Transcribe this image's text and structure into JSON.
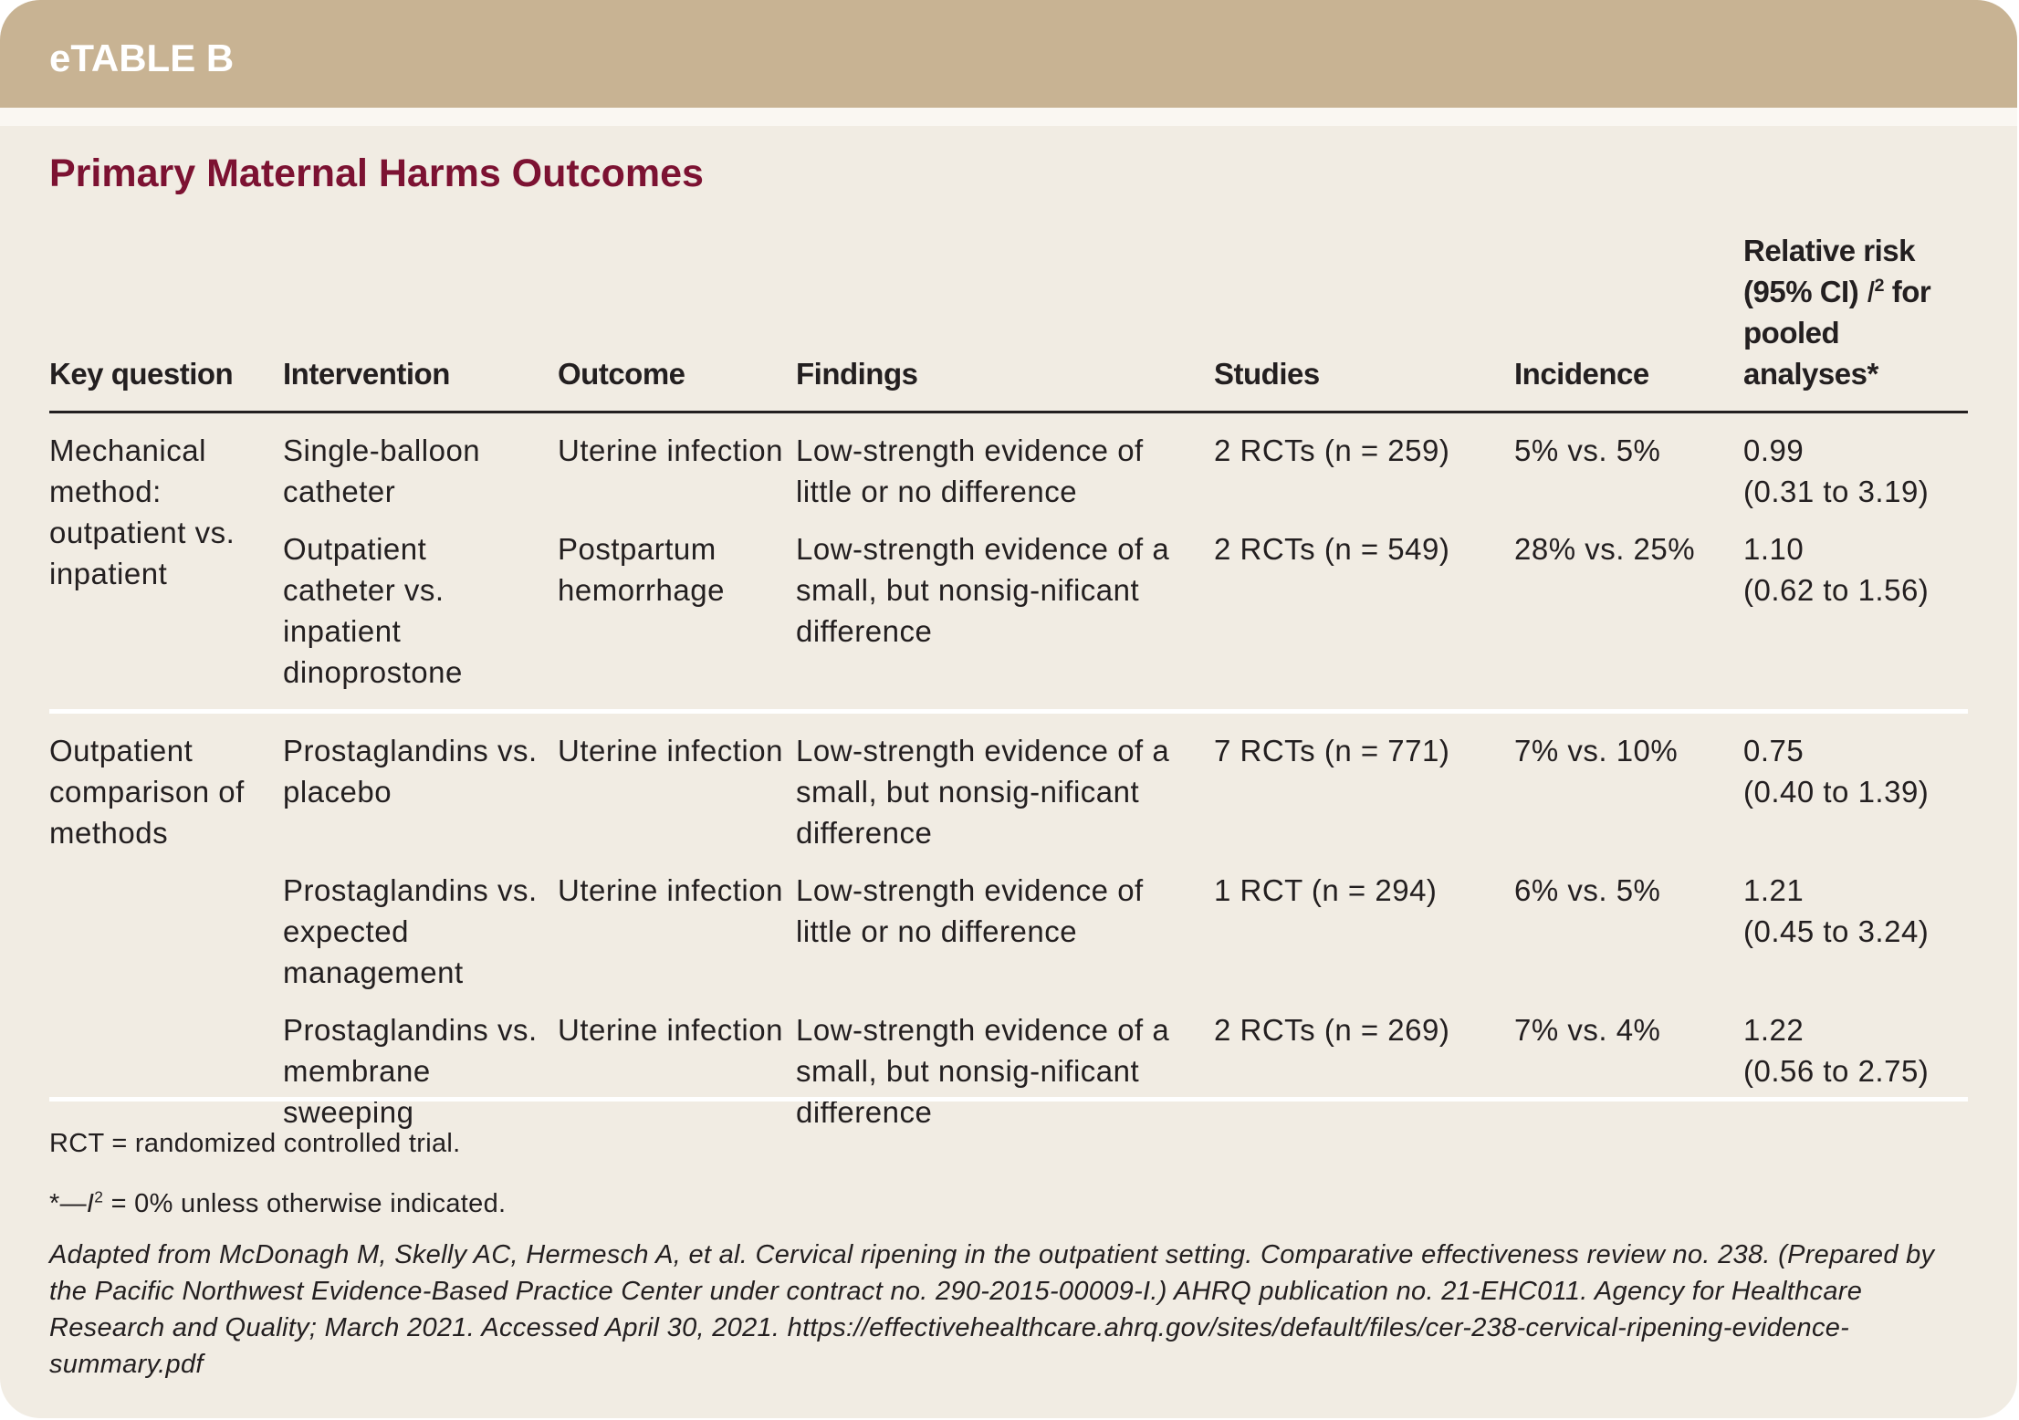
{
  "header": {
    "label": "eTABLE B"
  },
  "title": "Primary Maternal Harms Outcomes",
  "table": {
    "columns": [
      "Key question",
      "Intervention",
      "Outcome",
      "Findings",
      "Studies",
      "Incidence",
      {
        "text": "Relative risk (95% CI) ",
        "italic": "I",
        "sup": "2",
        "text_after": " for pooled analyses*"
      }
    ],
    "groups": [
      {
        "key_question": "Mechanical method: outpatient vs. inpatient",
        "rows": [
          {
            "intervention": "Single-balloon catheter",
            "outcome": "Uterine infection",
            "findings": "Low-strength evidence of little or no difference",
            "studies": "2 RCTs (n = 259)",
            "incidence": "5% vs. 5%",
            "rr": "0.99",
            "ci": "(0.31 to 3.19)"
          },
          {
            "intervention": "Outpatient catheter vs. inpatient dinoprostone",
            "outcome": "Postpartum hemorrhage",
            "findings": "Low-strength evidence of a small, but nonsig-nificant difference",
            "studies": "2 RCTs (n = 549)",
            "incidence": "28% vs. 25%",
            "rr": "1.10",
            "ci": "(0.62 to 1.56)"
          }
        ]
      },
      {
        "key_question": "Outpatient comparison of methods",
        "rows": [
          {
            "intervention": "Prostaglandins vs. placebo",
            "outcome": "Uterine infection",
            "findings": "Low-strength evidence of a small, but nonsig-nificant difference",
            "studies": "7 RCTs (n = 771)",
            "incidence": "7% vs. 10%",
            "rr": "0.75",
            "ci": "(0.40 to 1.39)"
          },
          {
            "intervention": "Prostaglandins vs. expected management",
            "outcome": "Uterine infection",
            "findings": "Low-strength evidence of little or no difference",
            "studies": "1 RCT (n = 294)",
            "incidence": "6% vs. 5%",
            "rr": "1.21",
            "ci": "(0.45 to 3.24)"
          },
          {
            "intervention": "Prostaglandins vs. membrane sweeping",
            "outcome": "Uterine infection",
            "findings": "Low-strength evidence of a small, but nonsig-nificant difference",
            "studies": "2 RCTs (n = 269)",
            "incidence": "7% vs. 4%",
            "rr": "1.22",
            "ci": "(0.56 to 2.75)"
          }
        ]
      }
    ]
  },
  "notes": [
    "RCT = randomized controlled trial.",
    {
      "prefix": "*—",
      "italic": "I",
      "sup": "2",
      "text": " = 0% unless otherwise indicated."
    },
    "Adapted from McDonagh M, Skelly AC, Hermesch A, et al. Cervical ripening in the outpatient setting. Comparative effectiveness review no. 238. (Prepared by the Pacific Northwest Evidence-Based Practice Center under contract no. 290-2015-00009-I.) AHRQ publication no. 21-EHC011. Agency for Healthcare Research and Quality; March 2021. Accessed April 30, 2021. https://effectivehealthcare.ahrq.gov/sites/default/files/cer-238-cervical-ripening-evidence-summary.pdf"
  ]
}
